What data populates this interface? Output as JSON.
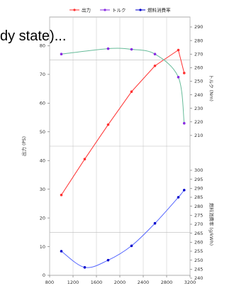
{
  "caption_fragment": "dy state)...",
  "chart_data": {
    "type": "line",
    "title": "",
    "legend_position": "top",
    "grid": true,
    "x": {
      "label": "",
      "ticks": [
        "800",
        "1200",
        "1600",
        "2000",
        "2400",
        "2800",
        "3200"
      ],
      "range": [
        800,
        3200
      ]
    },
    "y_left": {
      "label": "出力 (PS)",
      "ticks": [
        "0",
        "10",
        "20",
        "30",
        "40",
        "50",
        "60",
        "70",
        "80"
      ],
      "range": [
        0,
        90
      ]
    },
    "y_right_torque": {
      "label": "トルク (Nm)",
      "ticks": [
        "210",
        "220",
        "230",
        "240",
        "250",
        "260",
        "270",
        "280",
        "290"
      ],
      "range": [
        200,
        290
      ]
    },
    "y_right_fuel": {
      "label": "燃料消費率 (g/kWh)",
      "ticks": [
        "240",
        "245",
        "250",
        "255",
        "260",
        "265",
        "270",
        "275",
        "280",
        "285",
        "290",
        "295",
        "300"
      ],
      "range": [
        240,
        300
      ]
    },
    "series": [
      {
        "name": "出力",
        "color": "#ff3030",
        "marker": "circle",
        "axis": "left",
        "points": [
          [
            1000,
            28
          ],
          [
            1400,
            40.5
          ],
          [
            1800,
            52.5
          ],
          [
            2200,
            64
          ],
          [
            2600,
            73
          ],
          [
            3000,
            78.5
          ],
          [
            3100,
            70.5
          ]
        ]
      },
      {
        "name": "トルク",
        "color": "#8a2be2",
        "line_color": "#66bb99",
        "marker": "circle",
        "axis": "right_torque",
        "smooth": true,
        "points": [
          [
            1000,
            270
          ],
          [
            1800,
            274
          ],
          [
            2200,
            273.5
          ],
          [
            2600,
            270
          ],
          [
            3000,
            253
          ],
          [
            3100,
            219
          ]
        ]
      },
      {
        "name": "燃料消費率",
        "color": "#0000cc",
        "line_color": "#5566ff",
        "marker": "circle",
        "axis": "right_fuel",
        "smooth": true,
        "points": [
          [
            1000,
            255
          ],
          [
            1400,
            246
          ],
          [
            1800,
            250
          ],
          [
            2200,
            258
          ],
          [
            2600,
            270.5
          ],
          [
            3000,
            285
          ],
          [
            3100,
            289
          ]
        ]
      }
    ]
  }
}
